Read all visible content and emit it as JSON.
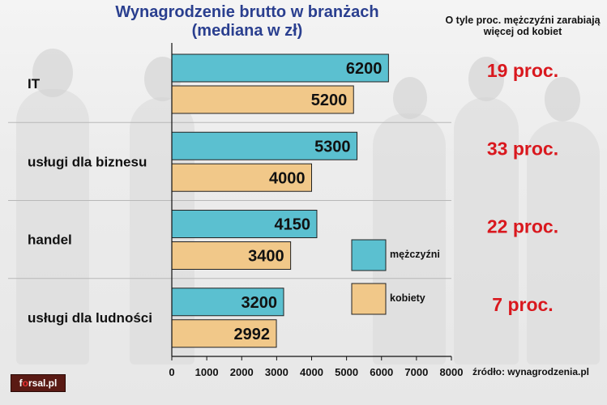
{
  "title": "Wynagrodzenie brutto  w branżach (mediana w zł)",
  "note": "O tyle proc. mężczyźni zarabiają więcej od kobiet",
  "source": "źródło: wynagrodzenia.pl",
  "logo": {
    "prefix": "f",
    "accent": "o",
    "rest": "rsal.pl"
  },
  "colors": {
    "men": "#5bc0d0",
    "women": "#f1c889",
    "percent": "#d9181e",
    "title": "#2a3f8f"
  },
  "chart_data": {
    "type": "bar",
    "orientation": "horizontal",
    "categories": [
      "IT",
      "usługi dla biznesu",
      "handel",
      "usługi dla ludności"
    ],
    "series": [
      {
        "name": "mężczyźni",
        "values": [
          6200,
          5300,
          4150,
          3200
        ]
      },
      {
        "name": "kobiety",
        "values": [
          5200,
          4000,
          3400,
          2992
        ]
      }
    ],
    "annotations": [
      "19 proc.",
      "33 proc.",
      "22 proc.",
      "7 proc."
    ],
    "xticks": [
      0,
      1000,
      2000,
      3000,
      4000,
      5000,
      6000,
      7000,
      8000
    ],
    "xlim": [
      0,
      8000
    ],
    "legend_position": "center-right",
    "grid": true
  }
}
